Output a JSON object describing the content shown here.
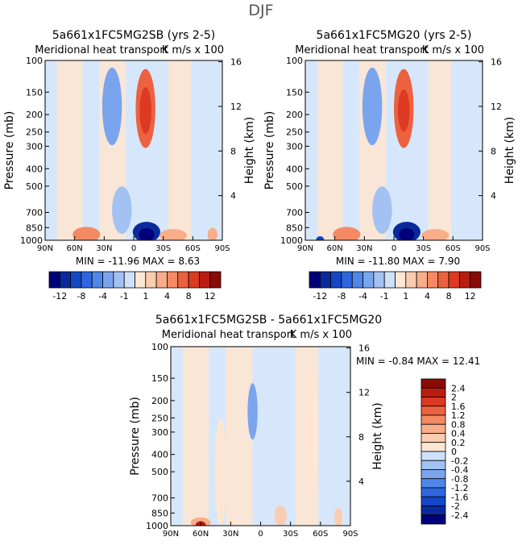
{
  "figure_title": "DJF",
  "colors": {
    "neg_scale": [
      "#00007a",
      "#0a2a9c",
      "#1546c4",
      "#2f66e0",
      "#4f86ea",
      "#7aa5ee",
      "#a3c1f3",
      "#cfe0fa"
    ],
    "pos_scale": [
      "#fde6d3",
      "#fbcdb0",
      "#f9ad89",
      "#f48a64",
      "#ec6240",
      "#dc3a22",
      "#bb1c10",
      "#8a0b06"
    ],
    "background_field": "#d7e7fb",
    "zero_field": "#ffffff"
  },
  "chart_data": [
    {
      "type": "contour",
      "title": "5a661x1FC5MG2SB (yrs 2-5)",
      "subtitle": "Meridional heat transport",
      "units": "K m/s x 100",
      "xlabel": "",
      "ylabel": "Pressure (mb)",
      "ylabel_right": "Height (km)",
      "x_ticks": [
        "90N",
        "60N",
        "30N",
        "0",
        "30S",
        "60S",
        "90S"
      ],
      "y_ticks": [
        "100",
        "150",
        "200",
        "250",
        "300",
        "400",
        "500",
        "700",
        "850",
        "1000"
      ],
      "y_right_ticks": [
        "16",
        "12",
        "8",
        "4"
      ],
      "xlim": [
        90,
        -90
      ],
      "ylim": [
        1000,
        100
      ],
      "stats": {
        "min_label": "MIN =",
        "min": "-11.96",
        "max_label": "MAX =",
        "max": "8.63"
      },
      "blobs": [
        {
          "lat": -12,
          "p": 185,
          "rlat": 10,
          "rp": 90,
          "level": 5
        },
        {
          "lat": -12,
          "p": 190,
          "rlat": 6,
          "rp": 55,
          "level": 6
        },
        {
          "lat": -13,
          "p": 900,
          "rlat": 14,
          "rp": 130,
          "level": -7
        },
        {
          "lat": -13,
          "p": 930,
          "rlat": 8,
          "rp": 80,
          "level": -8
        },
        {
          "lat": 48,
          "p": 930,
          "rlat": 14,
          "rp": 110,
          "level": 4
        },
        {
          "lat": 22,
          "p": 180,
          "rlat": 10,
          "rp": 90,
          "level": -3
        },
        {
          "lat": 12,
          "p": 680,
          "rlat": 10,
          "rp": 200,
          "level": -2
        },
        {
          "lat": -40,
          "p": 940,
          "rlat": 14,
          "rp": 90,
          "level": 3
        },
        {
          "lat": -80,
          "p": 930,
          "rlat": 5,
          "rp": 90,
          "level": 3
        }
      ]
    },
    {
      "type": "contour",
      "title": "5a661x1FC5MG20 (yrs 2-5)",
      "subtitle": "Meridional heat transport",
      "units": "K m/s x 100",
      "xlabel": "",
      "ylabel": "Pressure (mb)",
      "ylabel_right": "Height (km)",
      "x_ticks": [
        "90N",
        "60N",
        "30N",
        "0",
        "30S",
        "60S",
        "90S"
      ],
      "y_ticks": [
        "100",
        "150",
        "200",
        "250",
        "300",
        "400",
        "500",
        "700",
        "850",
        "1000"
      ],
      "y_right_ticks": [
        "16",
        "12",
        "8",
        "4"
      ],
      "xlim": [
        90,
        -90
      ],
      "ylim": [
        1000,
        100
      ],
      "stats": {
        "min_label": "MIN =",
        "min": "-11.80",
        "max_label": "MAX =",
        "max": "7.90"
      },
      "blobs": [
        {
          "lat": -10,
          "p": 185,
          "rlat": 10,
          "rp": 90,
          "level": 5
        },
        {
          "lat": -10,
          "p": 190,
          "rlat": 6,
          "rp": 50,
          "level": 6
        },
        {
          "lat": -13,
          "p": 900,
          "rlat": 14,
          "rp": 130,
          "level": -7
        },
        {
          "lat": -13,
          "p": 930,
          "rlat": 8,
          "rp": 80,
          "level": -8
        },
        {
          "lat": 48,
          "p": 930,
          "rlat": 14,
          "rp": 110,
          "level": 4
        },
        {
          "lat": 22,
          "p": 180,
          "rlat": 10,
          "rp": 90,
          "level": -3
        },
        {
          "lat": 12,
          "p": 680,
          "rlat": 10,
          "rp": 200,
          "level": -2
        },
        {
          "lat": -42,
          "p": 940,
          "rlat": 14,
          "rp": 90,
          "level": 3
        },
        {
          "lat": 75,
          "p": 990,
          "rlat": 4,
          "rp": 30,
          "level": -6
        }
      ]
    },
    {
      "type": "contour",
      "title": "5a661x1FC5MG2SB - 5a661x1FC5MG20",
      "subtitle": "Meridional heat transport",
      "units": "K m/s x 100",
      "xlabel": "",
      "ylabel": "Pressure (mb)",
      "ylabel_right": "Height (km)",
      "x_ticks": [
        "90N",
        "60N",
        "30N",
        "0",
        "30S",
        "60S",
        "90S"
      ],
      "y_ticks": [
        "100",
        "150",
        "200",
        "250",
        "300",
        "400",
        "500",
        "700",
        "850",
        "1000"
      ],
      "y_right_ticks": [
        "16",
        "12",
        "8",
        "4"
      ],
      "xlim": [
        90,
        -90
      ],
      "ylim": [
        1000,
        100
      ],
      "stats": {
        "min_label": "MIN =",
        "min": "-0.84",
        "max_label": "MAX =",
        "max": "12.41"
      },
      "blobs": [
        {
          "lat": 60,
          "p": 960,
          "rlat": 10,
          "rp": 80,
          "level": 3
        },
        {
          "lat": 60,
          "p": 985,
          "rlat": 5,
          "rp": 30,
          "level": 7
        },
        {
          "lat": 8,
          "p": 230,
          "rlat": 5,
          "rp": 80,
          "level": -3
        },
        {
          "lat": -20,
          "p": 880,
          "rlat": 6,
          "rp": 120,
          "level": 2
        },
        {
          "lat": -78,
          "p": 900,
          "rlat": 4,
          "rp": 120,
          "level": 2
        },
        {
          "lat": 40,
          "p": 500,
          "rlat": 6,
          "rp": 300,
          "level": 1
        },
        {
          "lat": -50,
          "p": 300,
          "rlat": 8,
          "rp": 200,
          "level": 1
        }
      ]
    }
  ],
  "colorbars": [
    {
      "orientation": "horizontal",
      "labels": [
        "-12",
        "-8",
        "-4",
        "-1",
        "1",
        "4",
        "8",
        "12"
      ]
    },
    {
      "orientation": "horizontal",
      "labels": [
        "-12",
        "-8",
        "-4",
        "-1",
        "1",
        "4",
        "8",
        "12"
      ]
    },
    {
      "orientation": "vertical",
      "labels": [
        "2.4",
        "2",
        "1.6",
        "1.2",
        "0.8",
        "0.4",
        "0.2",
        "0",
        "-0.2",
        "-0.4",
        "-0.8",
        "-1.2",
        "-1.6",
        "-2",
        "-2.4"
      ]
    }
  ]
}
